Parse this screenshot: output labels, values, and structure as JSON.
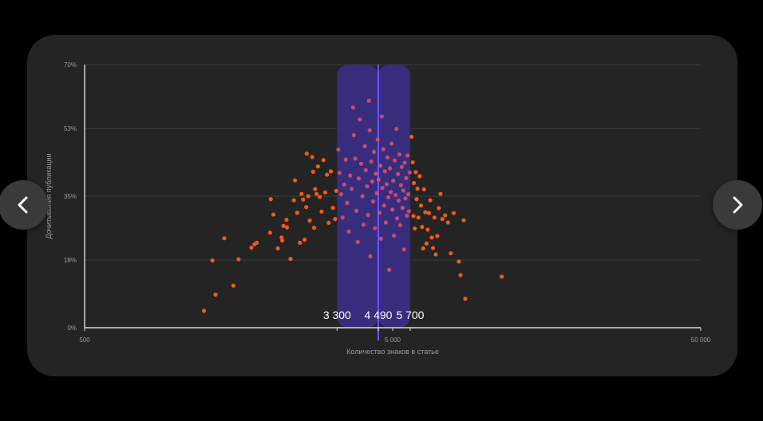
{
  "chart_data": {
    "type": "scatter",
    "title": "",
    "xlabel": "Количество знаков в статье",
    "ylabel": "Дочитывания публикации",
    "x_scale": "log",
    "xlim": [
      500,
      50000
    ],
    "ylim": [
      0,
      70
    ],
    "x_ticks": [
      {
        "value": 500,
        "label": "500"
      },
      {
        "value": 5000,
        "label": "5 000"
      },
      {
        "value": 50000,
        "label": "50 000"
      }
    ],
    "y_ticks": [
      {
        "value": 0,
        "label": "0%"
      },
      {
        "value": 18,
        "label": "18%"
      },
      {
        "value": 35,
        "label": "35%"
      },
      {
        "value": 53,
        "label": "53%"
      },
      {
        "value": 70,
        "label": "70%"
      }
    ],
    "grid": true,
    "highlight_band": {
      "from": 3300,
      "to": 5700,
      "color": "#3b2f85"
    },
    "median_line": {
      "value": 4490,
      "color": "#6a55ff"
    },
    "band_labels": [
      {
        "value": 3300,
        "label": "3 300"
      },
      {
        "value": 4490,
        "label": "4 490"
      },
      {
        "value": 5700,
        "label": "5 700"
      }
    ],
    "point_colors": {
      "outside": "#f05a1a",
      "inside": "#e0506e"
    },
    "series": [
      {
        "points": [
          [
            1220,
            4.5
          ],
          [
            1330,
            8.8
          ],
          [
            1300,
            17.9
          ],
          [
            1420,
            23.8
          ],
          [
            1520,
            11.2
          ],
          [
            1580,
            18.2
          ],
          [
            1740,
            21.3
          ],
          [
            1780,
            22.2
          ],
          [
            1810,
            22.6
          ],
          [
            2000,
            25.3
          ],
          [
            2010,
            34.2
          ],
          [
            2050,
            30.1
          ],
          [
            2120,
            21.1
          ],
          [
            2180,
            24.0
          ],
          [
            2190,
            23.2
          ],
          [
            2210,
            27.1
          ],
          [
            2260,
            28.7
          ],
          [
            2270,
            26.7
          ],
          [
            2330,
            18.3
          ],
          [
            2390,
            33.9
          ],
          [
            2410,
            39.2
          ],
          [
            2450,
            30.6
          ],
          [
            2500,
            22.6
          ],
          [
            2530,
            35.6
          ],
          [
            2560,
            34.1
          ],
          [
            2590,
            23.4
          ],
          [
            2620,
            32.1
          ],
          [
            2630,
            46.3
          ],
          [
            2660,
            35.0
          ],
          [
            2690,
            28.5
          ],
          [
            2740,
            45.4
          ],
          [
            2760,
            41.5
          ],
          [
            2780,
            26.6
          ],
          [
            2800,
            36.9
          ],
          [
            2830,
            35.6
          ],
          [
            2860,
            42.9
          ],
          [
            2900,
            34.8
          ],
          [
            2940,
            30.9
          ],
          [
            2980,
            44.6
          ],
          [
            3020,
            36.0
          ],
          [
            3060,
            40.7
          ],
          [
            3100,
            27.9
          ],
          [
            3150,
            41.6
          ],
          [
            3200,
            31.9
          ],
          [
            3250,
            28.9
          ],
          [
            3280,
            36.4
          ],
          [
            5760,
            50.8
          ],
          [
            5810,
            44.0
          ],
          [
            5840,
            29.7
          ],
          [
            5860,
            38.5
          ],
          [
            5900,
            26.4
          ],
          [
            5940,
            41.4
          ],
          [
            5980,
            34.2
          ],
          [
            6020,
            37.0
          ],
          [
            6060,
            29.3
          ],
          [
            6120,
            40.3
          ],
          [
            6180,
            32.5
          ],
          [
            6230,
            26.8
          ],
          [
            6280,
            21.1
          ],
          [
            6320,
            36.8
          ],
          [
            6380,
            30.7
          ],
          [
            6440,
            22.4
          ],
          [
            6500,
            26.1
          ],
          [
            6560,
            30.5
          ],
          [
            6620,
            33.9
          ],
          [
            6700,
            24.0
          ],
          [
            6760,
            21.2
          ],
          [
            6830,
            29.3
          ],
          [
            6900,
            19.5
          ],
          [
            6980,
            24.4
          ],
          [
            7060,
            31.8
          ],
          [
            7150,
            35.6
          ],
          [
            7250,
            28.9
          ],
          [
            7400,
            29.9
          ],
          [
            7560,
            28.0
          ],
          [
            7720,
            19.8
          ],
          [
            7890,
            30.5
          ],
          [
            8200,
            17.6
          ],
          [
            8300,
            14.0
          ],
          [
            8500,
            28.6
          ],
          [
            8600,
            7.7
          ],
          [
            11300,
            13.6
          ]
        ]
      },
      {
        "points": [
          [
            3330,
            47.4
          ],
          [
            3360,
            41.2
          ],
          [
            3400,
            35.5
          ],
          [
            3440,
            29.3
          ],
          [
            3480,
            38.1
          ],
          [
            3520,
            44.7
          ],
          [
            3560,
            33.2
          ],
          [
            3600,
            25.6
          ],
          [
            3640,
            40.5
          ],
          [
            3680,
            36.9
          ],
          [
            3720,
            58.6
          ],
          [
            3740,
            51.2
          ],
          [
            3780,
            45.0
          ],
          [
            3810,
            31.1
          ],
          [
            3850,
            22.8
          ],
          [
            3880,
            39.7
          ],
          [
            3910,
            55.4
          ],
          [
            3950,
            43.6
          ],
          [
            3990,
            35.0
          ],
          [
            4020,
            27.4
          ],
          [
            4060,
            48.3
          ],
          [
            4090,
            41.9
          ],
          [
            4130,
            37.6
          ],
          [
            4160,
            30.0
          ],
          [
            4190,
            60.4
          ],
          [
            4210,
            52.5
          ],
          [
            4230,
            19.0
          ],
          [
            4260,
            44.2
          ],
          [
            4290,
            38.9
          ],
          [
            4320,
            33.6
          ],
          [
            4350,
            46.8
          ],
          [
            4380,
            26.5
          ],
          [
            4410,
            41.0
          ],
          [
            4440,
            35.8
          ],
          [
            4470,
            50.1
          ],
          [
            4500,
            39.4
          ],
          [
            4530,
            30.6
          ],
          [
            4560,
            43.1
          ],
          [
            4580,
            23.7
          ],
          [
            4610,
            56.2
          ],
          [
            4630,
            37.2
          ],
          [
            4660,
            47.5
          ],
          [
            4690,
            32.5
          ],
          [
            4720,
            41.6
          ],
          [
            4750,
            28.0
          ],
          [
            4780,
            38.2
          ],
          [
            4810,
            45.3
          ],
          [
            4840,
            34.7
          ],
          [
            4870,
            15.4
          ],
          [
            4900,
            42.4
          ],
          [
            4930,
            36.1
          ],
          [
            4960,
            49.0
          ],
          [
            4990,
            31.4
          ],
          [
            5020,
            39.1
          ],
          [
            5050,
            24.5
          ],
          [
            5080,
            44.5
          ],
          [
            5110,
            35.3
          ],
          [
            5140,
            52.9
          ],
          [
            5170,
            29.1
          ],
          [
            5200,
            40.9
          ],
          [
            5230,
            33.8
          ],
          [
            5260,
            46.1
          ],
          [
            5290,
            27.3
          ],
          [
            5320,
            37.9
          ],
          [
            5350,
            42.8
          ],
          [
            5380,
            31.9
          ],
          [
            5410,
            36.5
          ],
          [
            5440,
            20.8
          ],
          [
            5470,
            43.9
          ],
          [
            5500,
            34.4
          ],
          [
            5530,
            39.8
          ],
          [
            5560,
            29.8
          ],
          [
            5590,
            45.8
          ],
          [
            5620,
            35.5
          ],
          [
            5650,
            31.0
          ],
          [
            5680,
            41.3
          ]
        ]
      }
    ]
  }
}
